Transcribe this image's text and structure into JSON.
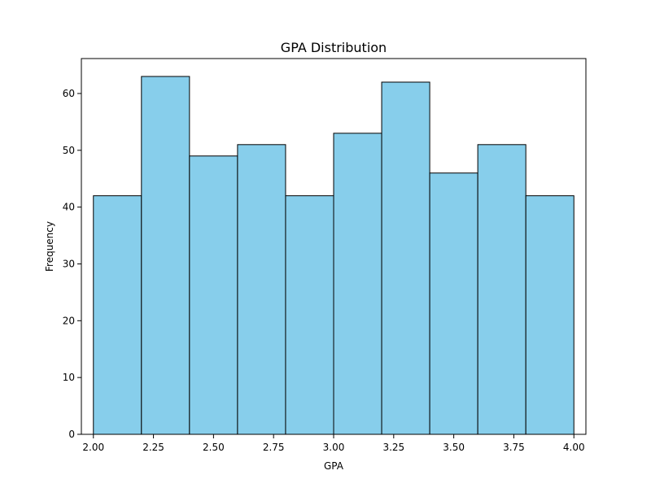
{
  "chart_data": {
    "type": "bar",
    "title": "GPA Distribution",
    "xlabel": "GPA",
    "ylabel": "Frequency",
    "bin_edges": [
      2.0,
      2.2,
      2.4,
      2.6,
      2.8,
      3.0,
      3.2,
      3.4,
      3.6,
      3.8,
      4.0
    ],
    "values": [
      42,
      63,
      49,
      51,
      42,
      53,
      62,
      46,
      51,
      42
    ],
    "xlim": [
      1.95,
      4.05
    ],
    "ylim": [
      0,
      66.15
    ],
    "xticks": [
      2.0,
      2.25,
      2.5,
      2.75,
      3.0,
      3.25,
      3.5,
      3.75,
      4.0
    ],
    "xtick_labels": [
      "2.00",
      "2.25",
      "2.50",
      "2.75",
      "3.00",
      "3.25",
      "3.50",
      "3.75",
      "4.00"
    ],
    "yticks": [
      0,
      10,
      20,
      30,
      40,
      50,
      60
    ],
    "ytick_labels": [
      "0",
      "10",
      "20",
      "30",
      "40",
      "50",
      "60"
    ],
    "bar_color": "#87CEEB",
    "edge_color": "#000000",
    "grid": false,
    "legend": false
  }
}
